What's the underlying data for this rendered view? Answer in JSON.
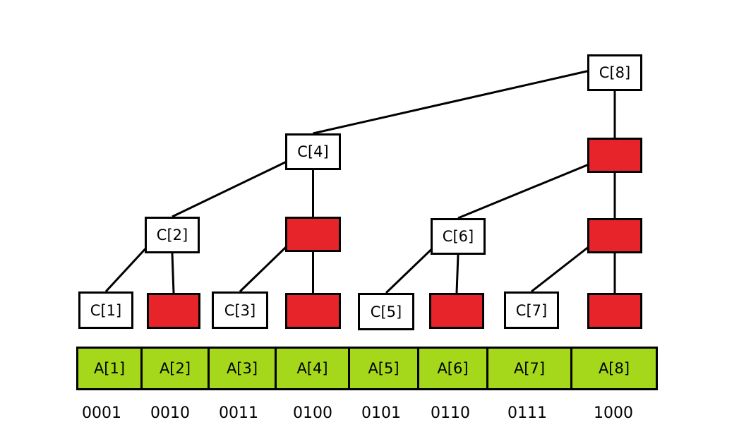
{
  "tree": {
    "nodes": [
      {
        "id": "c8",
        "label": "C[8]",
        "filled": false
      },
      {
        "id": "c4",
        "label": "C[4]",
        "filled": false
      },
      {
        "id": "r8a",
        "label": "",
        "filled": true
      },
      {
        "id": "c2",
        "label": "C[2]",
        "filled": false
      },
      {
        "id": "r4a",
        "label": "",
        "filled": true
      },
      {
        "id": "c6",
        "label": "C[6]",
        "filled": false
      },
      {
        "id": "r8b",
        "label": "",
        "filled": true
      },
      {
        "id": "c1",
        "label": "C[1]",
        "filled": false
      },
      {
        "id": "r2",
        "label": "",
        "filled": true
      },
      {
        "id": "c3",
        "label": "C[3]",
        "filled": false
      },
      {
        "id": "r4b",
        "label": "",
        "filled": true
      },
      {
        "id": "c5",
        "label": "C[5]",
        "filled": false
      },
      {
        "id": "r6",
        "label": "",
        "filled": true
      },
      {
        "id": "c7",
        "label": "C[7]",
        "filled": false
      },
      {
        "id": "r8c",
        "label": "",
        "filled": true
      }
    ],
    "edges": [
      [
        "c4",
        "c8"
      ],
      [
        "r8a",
        "c8"
      ],
      [
        "c2",
        "c4"
      ],
      [
        "r4a",
        "c4"
      ],
      [
        "c6",
        "r8a"
      ],
      [
        "r8b",
        "r8a"
      ],
      [
        "c1",
        "c2"
      ],
      [
        "r2",
        "c2"
      ],
      [
        "c3",
        "r4a"
      ],
      [
        "r4b",
        "r4a"
      ],
      [
        "c5",
        "c6"
      ],
      [
        "r6",
        "c6"
      ],
      [
        "c7",
        "r8b"
      ],
      [
        "r8c",
        "r8b"
      ]
    ]
  },
  "array": {
    "cells": [
      "A[1]",
      "A[2]",
      "A[3]",
      "A[4]",
      "A[5]",
      "A[6]",
      "A[7]",
      "A[8]"
    ]
  },
  "binary": [
    "0001",
    "0010",
    "0011",
    "0100",
    "0101",
    "0110",
    "0111",
    "1000"
  ],
  "colors": {
    "filled_node": "#e8242b",
    "array_cell": "#a5d81b",
    "outline": "#000000"
  }
}
